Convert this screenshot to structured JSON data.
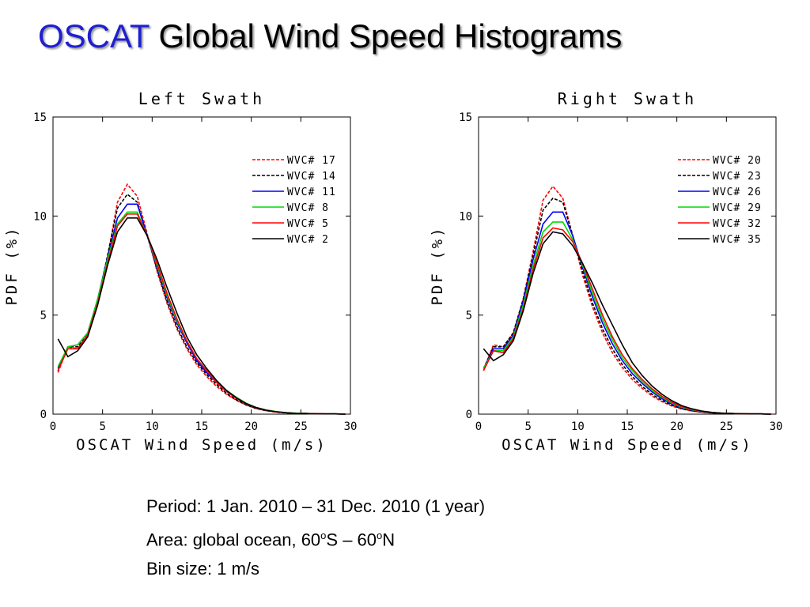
{
  "title": {
    "accent": "OSCAT",
    "rest": "Global Wind Speed Histograms"
  },
  "colors": {
    "accent": "#1f1fd0",
    "red": "#ff0000",
    "black": "#000000",
    "blue": "#0000ff",
    "green": "#00d800"
  },
  "chart_data": [
    {
      "type": "line",
      "title": "Left Swath",
      "xlabel": "OSCAT Wind Speed (m/s)",
      "ylabel": "PDF (%)",
      "xlim": [
        0,
        30
      ],
      "ylim": [
        0,
        15
      ],
      "xticks": [
        0,
        5,
        10,
        15,
        20,
        25,
        30
      ],
      "yticks": [
        0,
        5,
        10,
        15
      ],
      "legend": "top-right",
      "series": [
        {
          "name": "WVC# 17",
          "color": "#ff0000",
          "dash": true,
          "x": [
            0.5,
            1.5,
            2.5,
            3.5,
            4.5,
            5.5,
            6.5,
            7.5,
            8.5,
            9.5,
            10.5,
            11.5,
            12.5,
            13.5,
            14.5,
            15.5,
            16.5,
            17.5,
            18.5,
            19.5,
            20.5,
            21.5,
            22.5,
            23.5,
            24.5,
            25.5,
            26.5,
            27.5,
            28.5,
            29.5
          ],
          "y": [
            2.1,
            3.4,
            3.3,
            4.0,
            5.6,
            7.9,
            10.7,
            11.6,
            11.0,
            9.1,
            7.2,
            5.6,
            4.3,
            3.3,
            2.5,
            1.9,
            1.4,
            1.0,
            0.7,
            0.45,
            0.28,
            0.17,
            0.1,
            0.06,
            0.04,
            0.03,
            0.02,
            0.01,
            0.01,
            0.0
          ]
        },
        {
          "name": "WVC# 14",
          "color": "#000000",
          "dash": true,
          "x": [
            0.5,
            1.5,
            2.5,
            3.5,
            4.5,
            5.5,
            6.5,
            7.5,
            8.5,
            9.5,
            10.5,
            11.5,
            12.5,
            13.5,
            14.5,
            15.5,
            16.5,
            17.5,
            18.5,
            19.5,
            20.5,
            21.5,
            22.5,
            23.5,
            24.5,
            25.5,
            26.5,
            27.5,
            28.5,
            29.5
          ],
          "y": [
            2.2,
            3.4,
            3.4,
            4.0,
            5.7,
            8.0,
            10.4,
            11.1,
            10.7,
            9.0,
            7.3,
            5.7,
            4.4,
            3.4,
            2.6,
            2.0,
            1.5,
            1.05,
            0.72,
            0.47,
            0.29,
            0.18,
            0.11,
            0.07,
            0.04,
            0.03,
            0.02,
            0.01,
            0.01,
            0.0
          ]
        },
        {
          "name": "WVC# 11",
          "color": "#0000ff",
          "dash": false,
          "x": [
            0.5,
            1.5,
            2.5,
            3.5,
            4.5,
            5.5,
            6.5,
            7.5,
            8.5,
            9.5,
            10.5,
            11.5,
            12.5,
            13.5,
            14.5,
            15.5,
            16.5,
            17.5,
            18.5,
            19.5,
            20.5,
            21.5,
            22.5,
            23.5,
            24.5,
            25.5,
            26.5,
            27.5,
            28.5,
            29.5
          ],
          "y": [
            2.3,
            3.4,
            3.5,
            4.1,
            5.8,
            7.9,
            9.9,
            10.6,
            10.6,
            9.0,
            7.4,
            5.9,
            4.6,
            3.6,
            2.7,
            2.1,
            1.6,
            1.15,
            0.8,
            0.52,
            0.32,
            0.2,
            0.12,
            0.07,
            0.04,
            0.03,
            0.02,
            0.01,
            0.01,
            0.0
          ]
        },
        {
          "name": "WVC# 8",
          "color": "#00d800",
          "dash": false,
          "x": [
            0.5,
            1.5,
            2.5,
            3.5,
            4.5,
            5.5,
            6.5,
            7.5,
            8.5,
            9.5,
            10.5,
            11.5,
            12.5,
            13.5,
            14.5,
            15.5,
            16.5,
            17.5,
            18.5,
            19.5,
            20.5,
            21.5,
            22.5,
            23.5,
            24.5,
            25.5,
            26.5,
            27.5,
            28.5,
            29.5
          ],
          "y": [
            2.4,
            3.4,
            3.5,
            4.1,
            5.8,
            7.8,
            9.6,
            10.2,
            10.2,
            9.0,
            7.5,
            6.0,
            4.7,
            3.7,
            2.8,
            2.2,
            1.6,
            1.2,
            0.85,
            0.55,
            0.34,
            0.21,
            0.13,
            0.08,
            0.05,
            0.03,
            0.02,
            0.01,
            0.01,
            0.0
          ]
        },
        {
          "name": "WVC# 5",
          "color": "#ff0000",
          "dash": false,
          "x": [
            0.5,
            1.5,
            2.5,
            3.5,
            4.5,
            5.5,
            6.5,
            7.5,
            8.5,
            9.5,
            10.5,
            11.5,
            12.5,
            13.5,
            14.5,
            15.5,
            16.5,
            17.5,
            18.5,
            19.5,
            20.5,
            21.5,
            22.5,
            23.5,
            24.5,
            25.5,
            26.5,
            27.5,
            28.5,
            29.5
          ],
          "y": [
            2.2,
            3.3,
            3.3,
            4.0,
            5.6,
            7.6,
            9.5,
            10.1,
            10.1,
            9.0,
            7.6,
            6.1,
            4.8,
            3.7,
            2.8,
            2.2,
            1.6,
            1.15,
            0.8,
            0.52,
            0.33,
            0.2,
            0.12,
            0.07,
            0.04,
            0.03,
            0.02,
            0.01,
            0.01,
            0.0
          ]
        },
        {
          "name": "WVC# 2",
          "color": "#000000",
          "dash": false,
          "x": [
            0.5,
            1.5,
            2.5,
            3.5,
            4.5,
            5.5,
            6.5,
            7.5,
            8.5,
            9.5,
            10.5,
            11.5,
            12.5,
            13.5,
            14.5,
            15.5,
            16.5,
            17.5,
            18.5,
            19.5,
            20.5,
            21.5,
            22.5,
            23.5,
            24.5,
            25.5,
            26.5,
            27.5,
            28.5,
            29.5
          ],
          "y": [
            3.8,
            2.9,
            3.2,
            3.9,
            5.5,
            7.5,
            9.2,
            9.9,
            9.9,
            9.0,
            7.8,
            6.4,
            5.1,
            3.9,
            3.0,
            2.3,
            1.7,
            1.2,
            0.82,
            0.53,
            0.33,
            0.2,
            0.12,
            0.07,
            0.04,
            0.03,
            0.02,
            0.01,
            0.01,
            0.0
          ]
        }
      ]
    },
    {
      "type": "line",
      "title": "Right Swath",
      "xlabel": "OSCAT Wind Speed (m/s)",
      "ylabel": "PDF (%)",
      "xlim": [
        0,
        30
      ],
      "ylim": [
        0,
        15
      ],
      "xticks": [
        0,
        5,
        10,
        15,
        20,
        25,
        30
      ],
      "yticks": [
        0,
        5,
        10,
        15
      ],
      "legend": "top-right",
      "series": [
        {
          "name": "WVC# 20",
          "color": "#ff0000",
          "dash": true,
          "x": [
            0.5,
            1.5,
            2.5,
            3.5,
            4.5,
            5.5,
            6.5,
            7.5,
            8.5,
            9.5,
            10.5,
            11.5,
            12.5,
            13.5,
            14.5,
            15.5,
            16.5,
            17.5,
            18.5,
            19.5,
            20.5,
            21.5,
            22.5,
            23.5,
            24.5,
            25.5,
            26.5,
            27.5,
            28.5,
            29.5
          ],
          "y": [
            2.2,
            3.5,
            3.4,
            4.1,
            5.8,
            8.2,
            10.8,
            11.5,
            10.9,
            9.0,
            7.0,
            5.4,
            4.1,
            3.1,
            2.35,
            1.75,
            1.3,
            0.92,
            0.63,
            0.41,
            0.26,
            0.16,
            0.1,
            0.06,
            0.04,
            0.03,
            0.02,
            0.01,
            0.01,
            0.0
          ]
        },
        {
          "name": "WVC# 23",
          "color": "#000000",
          "dash": true,
          "x": [
            0.5,
            1.5,
            2.5,
            3.5,
            4.5,
            5.5,
            6.5,
            7.5,
            8.5,
            9.5,
            10.5,
            11.5,
            12.5,
            13.5,
            14.5,
            15.5,
            16.5,
            17.5,
            18.5,
            19.5,
            20.5,
            21.5,
            22.5,
            23.5,
            24.5,
            25.5,
            26.5,
            27.5,
            28.5,
            29.5
          ],
          "y": [
            2.3,
            3.4,
            3.4,
            4.1,
            5.8,
            8.0,
            10.3,
            10.9,
            10.7,
            9.0,
            7.2,
            5.6,
            4.3,
            3.3,
            2.5,
            1.9,
            1.4,
            1.0,
            0.7,
            0.45,
            0.28,
            0.17,
            0.1,
            0.06,
            0.04,
            0.03,
            0.02,
            0.01,
            0.01,
            0.0
          ]
        },
        {
          "name": "WVC# 26",
          "color": "#0000ff",
          "dash": false,
          "x": [
            0.5,
            1.5,
            2.5,
            3.5,
            4.5,
            5.5,
            6.5,
            7.5,
            8.5,
            9.5,
            10.5,
            11.5,
            12.5,
            13.5,
            14.5,
            15.5,
            16.5,
            17.5,
            18.5,
            19.5,
            20.5,
            21.5,
            22.5,
            23.5,
            24.5,
            25.5,
            26.5,
            27.5,
            28.5,
            29.5
          ],
          "y": [
            2.3,
            3.3,
            3.3,
            4.0,
            5.7,
            7.8,
            9.6,
            10.2,
            10.2,
            9.0,
            7.4,
            5.9,
            4.6,
            3.55,
            2.7,
            2.05,
            1.55,
            1.12,
            0.78,
            0.51,
            0.32,
            0.2,
            0.12,
            0.07,
            0.04,
            0.03,
            0.02,
            0.01,
            0.01,
            0.0
          ]
        },
        {
          "name": "WVC# 29",
          "color": "#00d800",
          "dash": false,
          "x": [
            0.5,
            1.5,
            2.5,
            3.5,
            4.5,
            5.5,
            6.5,
            7.5,
            8.5,
            9.5,
            10.5,
            11.5,
            12.5,
            13.5,
            14.5,
            15.5,
            16.5,
            17.5,
            18.5,
            19.5,
            20.5,
            21.5,
            22.5,
            23.5,
            24.5,
            25.5,
            26.5,
            27.5,
            28.5,
            29.5
          ],
          "y": [
            2.3,
            3.2,
            3.2,
            3.9,
            5.5,
            7.5,
            9.2,
            9.7,
            9.7,
            8.8,
            7.5,
            6.1,
            4.8,
            3.75,
            2.85,
            2.2,
            1.65,
            1.2,
            0.85,
            0.56,
            0.35,
            0.22,
            0.13,
            0.08,
            0.05,
            0.03,
            0.02,
            0.01,
            0.01,
            0.0
          ]
        },
        {
          "name": "WVC# 32",
          "color": "#ff0000",
          "dash": false,
          "x": [
            0.5,
            1.5,
            2.5,
            3.5,
            4.5,
            5.5,
            6.5,
            7.5,
            8.5,
            9.5,
            10.5,
            11.5,
            12.5,
            13.5,
            14.5,
            15.5,
            16.5,
            17.5,
            18.5,
            19.5,
            20.5,
            21.5,
            22.5,
            23.5,
            24.5,
            25.5,
            26.5,
            27.5,
            28.5,
            29.5
          ],
          "y": [
            2.2,
            3.2,
            3.1,
            3.8,
            5.3,
            7.3,
            8.9,
            9.4,
            9.3,
            8.7,
            7.6,
            6.3,
            5.0,
            3.9,
            3.0,
            2.3,
            1.75,
            1.28,
            0.9,
            0.6,
            0.38,
            0.24,
            0.14,
            0.08,
            0.05,
            0.03,
            0.02,
            0.01,
            0.01,
            0.0
          ]
        },
        {
          "name": "WVC# 35",
          "color": "#000000",
          "dash": false,
          "x": [
            0.5,
            1.5,
            2.5,
            3.5,
            4.5,
            5.5,
            6.5,
            7.5,
            8.5,
            9.5,
            10.5,
            11.5,
            12.5,
            13.5,
            14.5,
            15.5,
            16.5,
            17.5,
            18.5,
            19.5,
            20.5,
            21.5,
            22.5,
            23.5,
            24.5,
            25.5,
            26.5,
            27.5,
            28.5,
            29.5
          ],
          "y": [
            3.3,
            2.7,
            3.0,
            3.7,
            5.2,
            7.1,
            8.6,
            9.2,
            9.1,
            8.5,
            7.6,
            6.6,
            5.5,
            4.5,
            3.5,
            2.6,
            1.95,
            1.42,
            1.0,
            0.68,
            0.43,
            0.27,
            0.16,
            0.09,
            0.05,
            0.03,
            0.02,
            0.01,
            0.01,
            0.0
          ]
        }
      ]
    }
  ],
  "notes": {
    "period": "Period: 1 Jan. 2010 – 31 Dec. 2010 (1 year)",
    "area_prefix": "Area: global ocean, 60",
    "area_sup1": "o",
    "area_mid": "S – 60",
    "area_sup2": "o",
    "area_suffix": "N",
    "bin": "Bin size: 1 m/s"
  }
}
